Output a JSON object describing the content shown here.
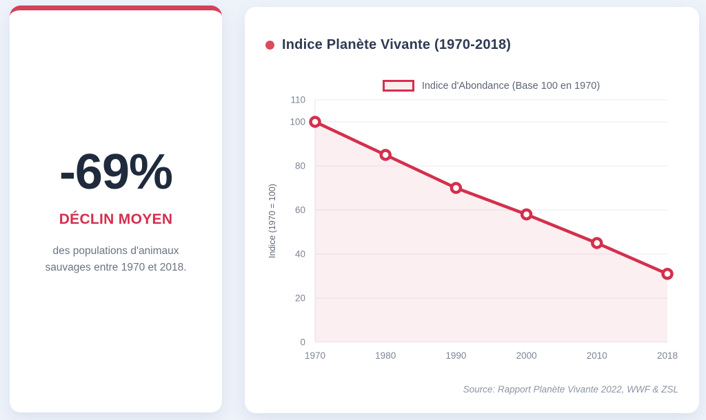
{
  "page": {
    "background_color": "#eef3fa"
  },
  "stat_card": {
    "value": "-69%",
    "label": "DÉCLIN MOYEN",
    "description": "des populations d'animaux sauvages entre 1970 et 2018.",
    "accent_color": "#d5405b",
    "value_color": "#1f2b3d",
    "label_color": "#d42f4e"
  },
  "chart_card": {
    "title": "Indice Planète Vivante (1970-2018)",
    "legend_label": "Indice d'Abondance (Base 100 en 1970)",
    "source": "Source: Rapport Planète Vivante 2022, WWF & ZSL"
  },
  "chart_data": {
    "type": "line",
    "title": "Indice Planète Vivante (1970-2018)",
    "categories": [
      "1970",
      "1980",
      "1990",
      "2000",
      "2010",
      "2018"
    ],
    "series": [
      {
        "name": "Indice d'Abondance (Base 100 en 1970)",
        "values": [
          100,
          85,
          70,
          58,
          45,
          31
        ]
      }
    ],
    "xlabel": "",
    "ylabel": "Indice (1970 = 100)",
    "ylim": [
      0,
      110
    ],
    "yticks": [
      0,
      20,
      40,
      60,
      80,
      100,
      110
    ],
    "grid": true,
    "legend_position": "top",
    "line_color": "#d3304d",
    "fill_color": "rgba(211,48,77,0.08)",
    "marker_fill": "#ffffff",
    "grid_color": "#e8ebf1",
    "axis_line_color": "#e3e7ee"
  }
}
